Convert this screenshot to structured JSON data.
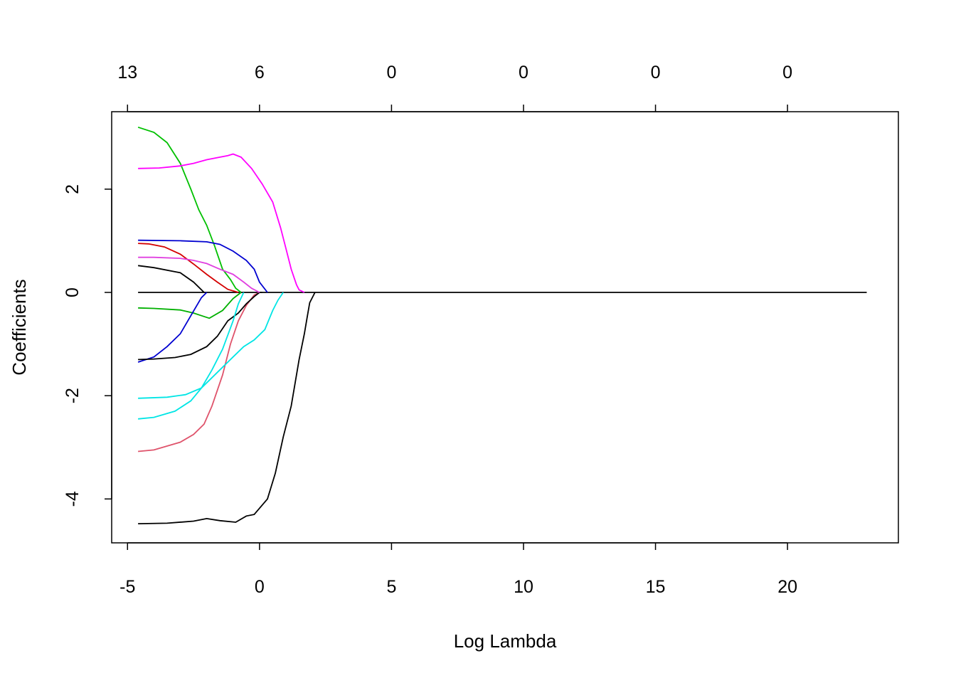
{
  "chart_data": {
    "type": "line",
    "title": "",
    "xlabel": "Log Lambda",
    "ylabel": "Coefficients",
    "xlim": [
      -5.6,
      24.2
    ],
    "ylim": [
      -4.85,
      3.5
    ],
    "x_ticks": [
      -5,
      0,
      5,
      10,
      15,
      20
    ],
    "x_tick_labels": [
      "-5",
      "0",
      "5",
      "10",
      "15",
      "20"
    ],
    "y_ticks": [
      -4,
      -2,
      0,
      2
    ],
    "y_tick_labels": [
      "-4",
      "-2",
      "0",
      "2"
    ],
    "top_axis": {
      "ticks": [
        -5,
        0,
        5,
        10,
        15,
        20
      ],
      "labels": [
        "13",
        "6",
        "0",
        "0",
        "0",
        "0"
      ]
    },
    "grid": false,
    "legend": "none",
    "series": [
      {
        "color": "#000000",
        "x": [
          -4.6,
          -1.0,
          2.1,
          23.0
        ],
        "y": [
          0,
          0,
          0,
          0
        ]
      },
      {
        "color": "#000000",
        "x": [
          -4.6,
          -3.5,
          -2.5,
          -2.0,
          -1.5,
          -0.9,
          -0.5,
          -0.2,
          0.3,
          0.6,
          0.9,
          1.2,
          1.5,
          1.7,
          1.8,
          1.9,
          2.1
        ],
        "y": [
          -4.48,
          -4.47,
          -4.43,
          -4.38,
          -4.42,
          -4.45,
          -4.33,
          -4.3,
          -4.0,
          -3.5,
          -2.8,
          -2.2,
          -1.3,
          -0.8,
          -0.5,
          -0.2,
          0
        ]
      },
      {
        "color": "#DF536B",
        "x": [
          -4.6,
          -4.0,
          -3.0,
          -2.5,
          -2.1,
          -1.8,
          -1.4,
          -1.1,
          -0.8,
          -0.5,
          -0.2,
          0.0
        ],
        "y": [
          -3.08,
          -3.05,
          -2.9,
          -2.75,
          -2.55,
          -2.2,
          -1.6,
          -1.0,
          -0.55,
          -0.25,
          -0.05,
          0
        ]
      },
      {
        "color": "#D40000",
        "x": [
          -4.6,
          -4.2,
          -3.6,
          -3.0,
          -2.5,
          -2.0,
          -1.6,
          -1.2,
          -0.8
        ],
        "y": [
          0.95,
          0.94,
          0.88,
          0.74,
          0.55,
          0.35,
          0.2,
          0.06,
          0
        ]
      },
      {
        "color": "#00C000",
        "x": [
          -4.6,
          -4.0,
          -3.5,
          -3.0,
          -2.6,
          -2.3,
          -2.0,
          -1.7,
          -1.4,
          -1.1,
          -0.9,
          -0.7
        ],
        "y": [
          3.2,
          3.1,
          2.9,
          2.5,
          2.0,
          1.6,
          1.3,
          0.9,
          0.45,
          0.25,
          0.08,
          0
        ]
      },
      {
        "color": "#00B000",
        "x": [
          -4.6,
          -4.0,
          -3.0,
          -2.5,
          -2.2,
          -1.9,
          -1.4,
          -1.0,
          -0.7
        ],
        "y": [
          -0.3,
          -0.31,
          -0.34,
          -0.4,
          -0.45,
          -0.5,
          -0.35,
          -0.12,
          0
        ]
      },
      {
        "color": "#0000D0",
        "x": [
          -4.6,
          -3.0,
          -2.0,
          -1.5,
          -1.0,
          -0.5,
          -0.2,
          0.0,
          0.3
        ],
        "y": [
          1.01,
          1.0,
          0.98,
          0.93,
          0.8,
          0.62,
          0.45,
          0.2,
          0
        ]
      },
      {
        "color": "#0000D0",
        "x": [
          -4.6,
          -4.0,
          -3.5,
          -3.0,
          -2.6,
          -2.2,
          -2.0
        ],
        "y": [
          -1.35,
          -1.25,
          -1.05,
          -0.8,
          -0.45,
          -0.1,
          0
        ]
      },
      {
        "color": "#000000",
        "x": [
          -4.6,
          -4.0,
          -3.2,
          -2.6,
          -2.0,
          -1.6,
          -1.2,
          -0.8,
          -0.5,
          -0.2,
          0.0,
          0.1
        ],
        "y": [
          -1.3,
          -1.29,
          -1.26,
          -1.2,
          -1.05,
          -0.85,
          -0.55,
          -0.4,
          -0.22,
          -0.08,
          0,
          0
        ]
      },
      {
        "color": "#000000",
        "x": [
          -4.6,
          -4.0,
          -3.0,
          -2.5,
          -2.1
        ],
        "y": [
          0.52,
          0.48,
          0.38,
          0.2,
          0
        ]
      },
      {
        "color": "#00E5E5",
        "x": [
          -4.6,
          -3.5,
          -2.8,
          -2.2,
          -1.8,
          -1.4,
          -1.0,
          -0.6,
          -0.2,
          0.2,
          0.5,
          0.7,
          0.9
        ],
        "y": [
          -2.05,
          -2.03,
          -1.98,
          -1.85,
          -1.65,
          -1.45,
          -1.25,
          -1.05,
          -0.92,
          -0.72,
          -0.35,
          -0.15,
          0
        ]
      },
      {
        "color": "#00E5E5",
        "x": [
          -4.6,
          -4.0,
          -3.2,
          -2.6,
          -2.2,
          -1.8,
          -1.4,
          -1.0,
          -0.8,
          -0.6
        ],
        "y": [
          -2.45,
          -2.42,
          -2.3,
          -2.1,
          -1.85,
          -1.5,
          -1.1,
          -0.55,
          -0.22,
          0
        ]
      },
      {
        "color": "#FF00FF",
        "x": [
          -4.6,
          -3.8,
          -3.0,
          -2.5,
          -2.0,
          -1.5,
          -1.2,
          -1.0,
          -0.7,
          -0.3,
          0.1,
          0.5,
          0.8,
          1.0,
          1.2,
          1.4,
          1.5,
          1.7
        ],
        "y": [
          2.4,
          2.41,
          2.45,
          2.5,
          2.57,
          2.62,
          2.65,
          2.68,
          2.62,
          2.4,
          2.1,
          1.75,
          1.25,
          0.85,
          0.45,
          0.15,
          0.05,
          0
        ]
      },
      {
        "color": "#E040E0",
        "x": [
          -4.6,
          -4.0,
          -3.0,
          -2.5,
          -2.0,
          -1.5,
          -1.0,
          -0.6,
          -0.3,
          0.0
        ],
        "y": [
          0.68,
          0.68,
          0.66,
          0.62,
          0.56,
          0.45,
          0.35,
          0.2,
          0.08,
          0
        ]
      }
    ]
  }
}
